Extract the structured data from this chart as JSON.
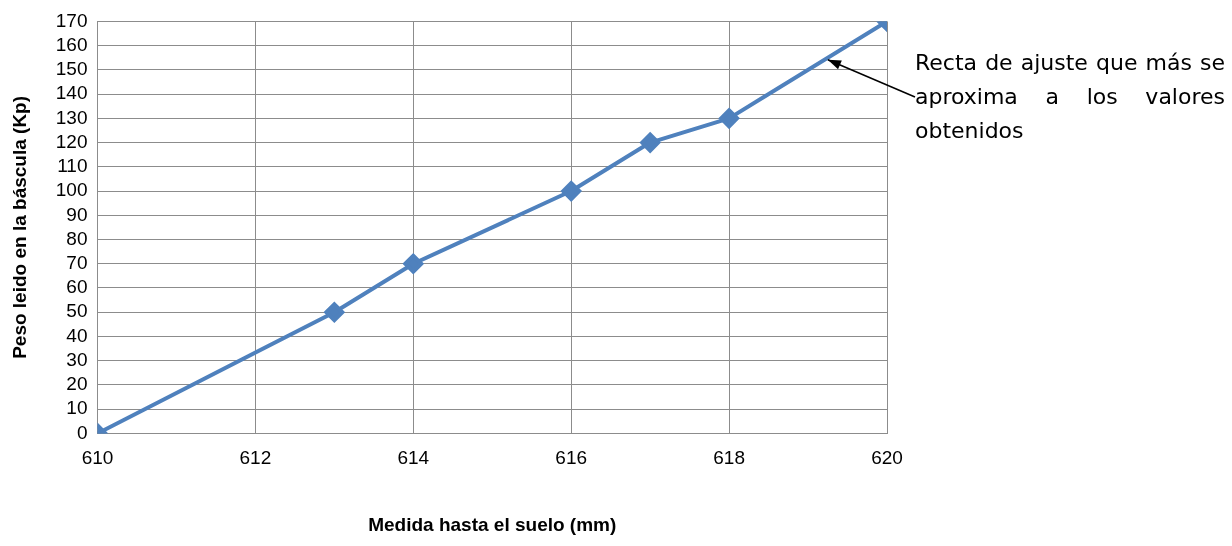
{
  "chart_data": {
    "type": "line",
    "xlabel": "Medida hasta el suelo (mm)",
    "ylabel": "Peso leido en la báscula (Kp)",
    "x": [
      610,
      613,
      614,
      616,
      617,
      618,
      620
    ],
    "series": [
      {
        "color": "#4f81bd",
        "values": [
          0,
          50,
          70,
          100,
          120,
          130,
          170
        ]
      }
    ],
    "xlim": [
      610,
      620
    ],
    "xticks": [
      610,
      612,
      614,
      616,
      618,
      620
    ],
    "ylim": [
      0,
      170
    ],
    "yticks": [
      0,
      10,
      20,
      30,
      40,
      50,
      60,
      70,
      80,
      90,
      100,
      110,
      120,
      130,
      140,
      150,
      160,
      170
    ],
    "grid": true,
    "marker": "diamond",
    "line_style": "solid",
    "legend": false,
    "annotations": [
      {
        "text": "Recta de ajuste que más se aproxima a los valores obtenidos",
        "x": 619.2,
        "y": 155
      }
    ]
  }
}
